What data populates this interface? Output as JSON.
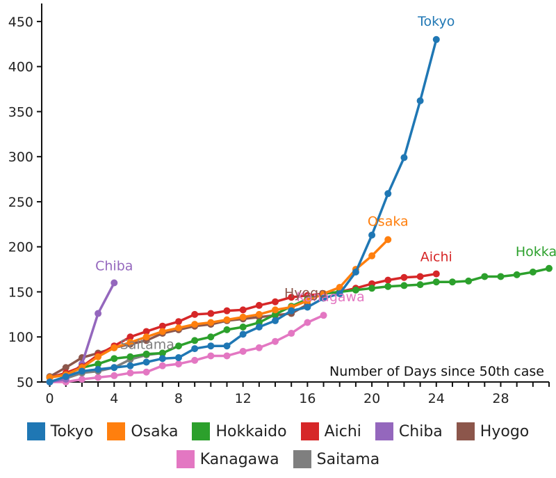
{
  "chart_data": {
    "type": "line",
    "xlabel": "Number of Days since 50th case",
    "ylabel": "",
    "xlim": [
      -0.5,
      31
    ],
    "ylim": [
      50,
      470
    ],
    "xticks": [
      0,
      4,
      8,
      12,
      16,
      20,
      24,
      28
    ],
    "yticks": [
      50,
      100,
      150,
      200,
      250,
      300,
      350,
      400,
      450
    ],
    "xtick_labels": [
      "0",
      "4",
      "8",
      "12",
      "16",
      "20",
      "24",
      "28"
    ],
    "ytick_labels": [
      "50",
      "100",
      "150",
      "200",
      "250",
      "300",
      "350",
      "400",
      "450"
    ],
    "series": [
      {
        "name": "Kanagawa",
        "color": "#e377c2",
        "label": "Kanagawa",
        "x": [
          0,
          1,
          2,
          3,
          4,
          5,
          6,
          7,
          8,
          9,
          10,
          11,
          12,
          13,
          14,
          15,
          16,
          17
        ],
        "y": [
          50,
          50,
          53,
          55,
          57,
          60,
          61,
          68,
          70,
          74,
          79,
          79,
          84,
          88,
          95,
          104,
          116,
          124
        ]
      },
      {
        "name": "Saitama",
        "color": "#7f7f7f",
        "label": "Saitama",
        "x": [
          0,
          1,
          2,
          3,
          4,
          5,
          6,
          7
        ],
        "y": [
          50,
          54,
          60,
          62,
          66,
          75,
          80,
          82
        ]
      },
      {
        "name": "Hyogo",
        "color": "#8c564b",
        "label": "Hyogo",
        "x": [
          0,
          1,
          2,
          3,
          4,
          5,
          6,
          7,
          8,
          9,
          10,
          11,
          12,
          13,
          14,
          15,
          16
        ],
        "y": [
          56,
          66,
          77,
          82,
          88,
          92,
          96,
          104,
          108,
          112,
          114,
          118,
          120,
          122,
          124,
          126,
          136
        ]
      },
      {
        "name": "Chiba",
        "color": "#9467bd",
        "label": "Chiba",
        "x": [
          0,
          1,
          2,
          3,
          4
        ],
        "y": [
          50,
          53,
          70,
          126,
          160
        ]
      },
      {
        "name": "Aichi",
        "color": "#d62728",
        "label": "Aichi",
        "x": [
          0,
          1,
          2,
          3,
          4,
          5,
          6,
          7,
          8,
          9,
          10,
          11,
          12,
          13,
          14,
          15,
          16,
          17,
          18,
          19,
          20,
          21,
          22,
          23,
          24
        ],
        "y": [
          55,
          60,
          67,
          80,
          90,
          100,
          106,
          112,
          117,
          125,
          126,
          129,
          130,
          135,
          139,
          144,
          146,
          148,
          150,
          154,
          159,
          163,
          166,
          167,
          170
        ]
      },
      {
        "name": "Hokkaido",
        "color": "#2ca02c",
        "label": "Hokkaido",
        "x": [
          0,
          1,
          2,
          3,
          4,
          5,
          6,
          7,
          8,
          9,
          10,
          11,
          12,
          13,
          14,
          15,
          16,
          17,
          18,
          19,
          20,
          21,
          22,
          23,
          24,
          25,
          26,
          27,
          28,
          29,
          30,
          31
        ],
        "y": [
          55,
          58,
          66,
          70,
          76,
          78,
          81,
          82,
          90,
          96,
          100,
          108,
          111,
          116,
          125,
          134,
          142,
          148,
          150,
          152,
          154,
          156,
          157,
          158,
          161,
          161,
          162,
          167,
          167,
          169,
          172,
          176
        ]
      },
      {
        "name": "Osaka",
        "color": "#ff7f0e",
        "label": "Osaka",
        "x": [
          0,
          1,
          2,
          3,
          4,
          5,
          6,
          7,
          8,
          9,
          10,
          11,
          12,
          13,
          14,
          15,
          16,
          17,
          18,
          19,
          20,
          21
        ],
        "y": [
          55,
          58,
          66,
          78,
          88,
          94,
          100,
          106,
          110,
          114,
          116,
          119,
          122,
          125,
          130,
          133,
          140,
          148,
          155,
          175,
          190,
          208
        ]
      },
      {
        "name": "Tokyo",
        "color": "#1f77b4",
        "label": "Tokyo",
        "x": [
          0,
          1,
          2,
          3,
          4,
          5,
          6,
          7,
          8,
          9,
          10,
          11,
          12,
          13,
          14,
          15,
          16,
          17,
          18,
          19,
          20,
          21,
          22,
          23,
          24
        ],
        "y": [
          50,
          56,
          62,
          64,
          66,
          68,
          72,
          76,
          77,
          87,
          90,
          90,
          103,
          111,
          118,
          129,
          133,
          143,
          148,
          172,
          213,
          259,
          299,
          362,
          430
        ]
      }
    ]
  },
  "legend": {
    "row1": [
      {
        "name": "Tokyo",
        "color": "#1f77b4"
      },
      {
        "name": "Osaka",
        "color": "#ff7f0e"
      },
      {
        "name": "Hokkaido",
        "color": "#2ca02c"
      },
      {
        "name": "Aichi",
        "color": "#d62728"
      },
      {
        "name": "Chiba",
        "color": "#9467bd"
      },
      {
        "name": "Hyogo",
        "color": "#8c564b"
      }
    ],
    "row2": [
      {
        "name": "Kanagawa",
        "color": "#e377c2"
      },
      {
        "name": "Saitama",
        "color": "#7f7f7f"
      }
    ]
  }
}
